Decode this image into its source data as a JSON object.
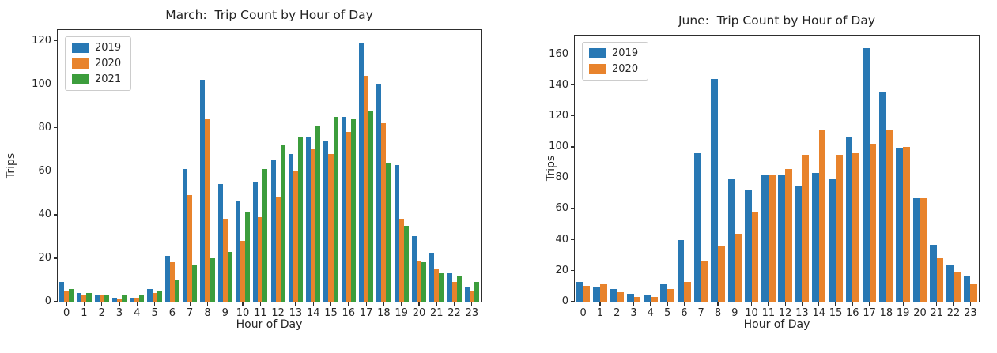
{
  "figure": {
    "background": "#ffffff",
    "text_color": "#262626",
    "axis_color": "#2e2e2e"
  },
  "chart_data": [
    {
      "id": "march",
      "type": "bar",
      "title": "March:  Trip Count by Hour of Day",
      "xlabel": "Hour of Day",
      "ylabel": "Trips",
      "ylim": [
        0,
        125
      ],
      "yticks": [
        0,
        20,
        40,
        60,
        80,
        100,
        120
      ],
      "categories": [
        "0",
        "1",
        "2",
        "3",
        "4",
        "5",
        "6",
        "7",
        "8",
        "9",
        "10",
        "11",
        "12",
        "13",
        "14",
        "15",
        "16",
        "17",
        "18",
        "19",
        "20",
        "21",
        "22",
        "23"
      ],
      "grid": false,
      "legend_position": "upper left",
      "series": [
        {
          "name": "2019",
          "color": "#2878b4",
          "values": [
            9,
            4,
            3,
            2,
            2,
            6,
            21,
            61,
            102,
            54,
            46,
            55,
            65,
            68,
            76,
            74,
            85,
            119,
            100,
            63,
            30,
            22,
            13,
            7
          ]
        },
        {
          "name": "2020",
          "color": "#e8832c",
          "values": [
            5,
            3,
            3,
            1,
            2,
            4,
            18,
            49,
            84,
            38,
            28,
            39,
            48,
            60,
            70,
            68,
            78,
            104,
            82,
            38,
            19,
            15,
            9,
            5
          ]
        },
        {
          "name": "2021",
          "color": "#3c9d3c",
          "values": [
            6,
            4,
            3,
            3,
            3,
            5,
            10,
            17,
            20,
            23,
            41,
            61,
            72,
            76,
            81,
            85,
            84,
            88,
            64,
            35,
            18,
            13,
            12,
            9
          ]
        }
      ]
    },
    {
      "id": "june",
      "type": "bar",
      "title": "June:  Trip Count by Hour of Day",
      "xlabel": "Hour of Day",
      "ylabel": "Trips",
      "ylim": [
        0,
        172
      ],
      "yticks": [
        0,
        20,
        40,
        60,
        80,
        100,
        120,
        140,
        160
      ],
      "categories": [
        "0",
        "1",
        "2",
        "3",
        "4",
        "5",
        "6",
        "7",
        "8",
        "9",
        "10",
        "11",
        "12",
        "13",
        "14",
        "15",
        "16",
        "17",
        "18",
        "19",
        "20",
        "21",
        "22",
        "23"
      ],
      "grid": false,
      "legend_position": "upper left",
      "series": [
        {
          "name": "2019",
          "color": "#2878b4",
          "values": [
            13,
            9,
            8,
            5,
            4,
            11,
            40,
            96,
            144,
            79,
            72,
            82,
            82,
            75,
            83,
            79,
            106,
            164,
            136,
            99,
            67,
            37,
            24,
            17
          ]
        },
        {
          "name": "2020",
          "color": "#e8832c",
          "values": [
            10,
            12,
            6,
            3,
            3,
            8,
            13,
            26,
            36,
            44,
            58,
            82,
            86,
            95,
            111,
            95,
            96,
            102,
            111,
            100,
            67,
            28,
            19,
            12
          ]
        }
      ]
    }
  ]
}
